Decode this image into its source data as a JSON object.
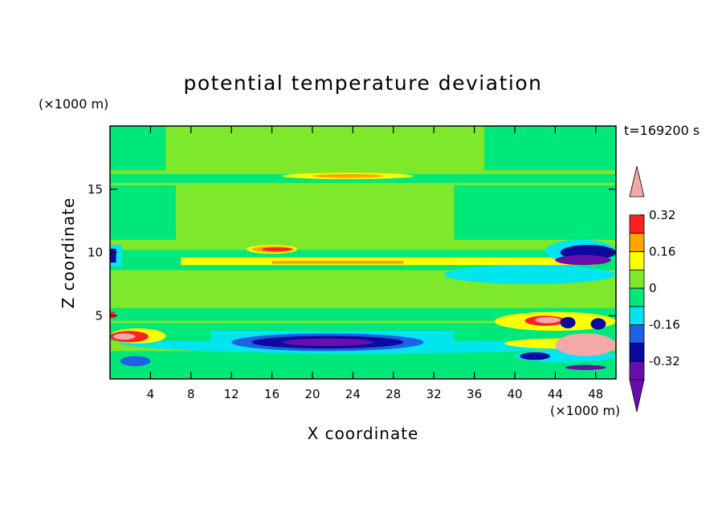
{
  "chart_data": {
    "type": "heatmap",
    "title": "potential temperature deviation",
    "xlabel": "X coordinate",
    "ylabel": "Z coordinate",
    "x_unit": "(×1000 m)",
    "y_unit": "(×1000 m)",
    "time_label": "t=169200 s",
    "xlim": [
      0,
      50
    ],
    "ylim": [
      0,
      20
    ],
    "x_ticks": [
      4,
      8,
      12,
      16,
      20,
      24,
      28,
      32,
      36,
      40,
      44,
      48
    ],
    "y_ticks": [
      5,
      10,
      15
    ],
    "colorbar": {
      "levels": [
        -0.4,
        -0.32,
        -0.24,
        -0.16,
        -0.08,
        0,
        0.08,
        0.16,
        0.24,
        0.32,
        0.4
      ],
      "colors": [
        "#6a0dad",
        "#0a0a9e",
        "#1e60e6",
        "#00e5ee",
        "#00e87a",
        "#7ee82a",
        "#ffff00",
        "#ffa500",
        "#ff2020"
      ],
      "under_color": "#6a0dad",
      "over_color": "#f4a8a8",
      "tick_labels": [
        "0.32",
        "0.16",
        "0",
        "-0.16",
        "-0.32"
      ],
      "tick_values": [
        0.32,
        0.16,
        0,
        -0.16,
        -0.32
      ]
    },
    "regions": [
      {
        "level": 0.04,
        "x": [
          0,
          50
        ],
        "z": [
          0,
          20
        ],
        "shape": "rect"
      },
      {
        "level": -0.04,
        "x": [
          0,
          50
        ],
        "z": [
          8.6,
          10.2
        ],
        "shape": "rect"
      },
      {
        "level": -0.04,
        "x": [
          0,
          50
        ],
        "z": [
          4.6,
          5.6
        ],
        "shape": "rect"
      },
      {
        "level": -0.04,
        "x": [
          0,
          50
        ],
        "z": [
          15.5,
          16.2
        ],
        "shape": "rect"
      },
      {
        "level": -0.04,
        "x": [
          0,
          5.5
        ],
        "z": [
          16.5,
          20
        ],
        "shape": "rect"
      },
      {
        "level": -0.04,
        "x": [
          37,
          50
        ],
        "z": [
          16.5,
          20
        ],
        "shape": "rect"
      },
      {
        "level": -0.04,
        "x": [
          0,
          6.5
        ],
        "z": [
          11,
          15.3
        ],
        "shape": "rect"
      },
      {
        "level": -0.04,
        "x": [
          34,
          50
        ],
        "z": [
          11,
          15.3
        ],
        "shape": "rect"
      },
      {
        "level": -0.04,
        "x": [
          0,
          50
        ],
        "z": [
          0,
          2.2
        ],
        "shape": "rect"
      },
      {
        "level": -0.12,
        "x": [
          1,
          49
        ],
        "z": [
          3.7,
          2.0
        ],
        "shape": "ellipse"
      },
      {
        "level": -0.04,
        "x": [
          0,
          50
        ],
        "z": [
          3.0,
          4.4
        ],
        "shape": "rect"
      },
      {
        "level": -0.12,
        "x": [
          10,
          34
        ],
        "z": [
          2.2,
          3.8
        ],
        "shape": "rect"
      },
      {
        "level": -0.2,
        "x": [
          12,
          31
        ],
        "z": [
          2.2,
          3.6
        ],
        "shape": "ellipse"
      },
      {
        "level": -0.28,
        "x": [
          14,
          29
        ],
        "z": [
          2.4,
          3.4
        ],
        "shape": "ellipse"
      },
      {
        "level": -0.36,
        "x": [
          17,
          26
        ],
        "z": [
          2.6,
          3.2
        ],
        "shape": "ellipse"
      },
      {
        "level": 0.12,
        "x": [
          7,
          48
        ],
        "z": [
          9.0,
          9.6
        ],
        "shape": "rect"
      },
      {
        "level": 0.2,
        "x": [
          16,
          29
        ],
        "z": [
          9.1,
          9.35
        ],
        "shape": "rect"
      },
      {
        "level": 0.12,
        "x": [
          17,
          30
        ],
        "z": [
          15.8,
          16.3
        ],
        "shape": "ellipse"
      },
      {
        "level": 0.2,
        "x": [
          20,
          27
        ],
        "z": [
          15.9,
          16.2
        ],
        "shape": "ellipse"
      },
      {
        "level": 0.12,
        "x": [
          13.5,
          18.5
        ],
        "z": [
          9.9,
          10.6
        ],
        "shape": "ellipse"
      },
      {
        "level": 0.2,
        "x": [
          14,
          18.2
        ],
        "z": [
          10.0,
          10.5
        ],
        "shape": "ellipse"
      },
      {
        "level": 0.28,
        "x": [
          15,
          18
        ],
        "z": [
          10.1,
          10.4
        ],
        "shape": "ellipse"
      },
      {
        "level": -0.12,
        "x": [
          0,
          1.2
        ],
        "z": [
          8.9,
          10.6
        ],
        "shape": "rect"
      },
      {
        "level": -0.28,
        "x": [
          0,
          0.6
        ],
        "z": [
          9.2,
          10.3
        ],
        "shape": "rect"
      },
      {
        "level": 0.12,
        "x": [
          0,
          5.5
        ],
        "z": [
          2.8,
          4.0
        ],
        "shape": "ellipse"
      },
      {
        "level": 0.28,
        "x": [
          0,
          3.8
        ],
        "z": [
          2.9,
          3.8
        ],
        "shape": "ellipse"
      },
      {
        "level": 0.4,
        "x": [
          0.3,
          2.5
        ],
        "z": [
          3.1,
          3.6
        ],
        "shape": "ellipse"
      },
      {
        "level": 0.28,
        "x": [
          0,
          0.5
        ],
        "z": [
          4.8,
          5.3
        ],
        "shape": "rect"
      },
      {
        "level": -0.2,
        "x": [
          1,
          4
        ],
        "z": [
          1.0,
          1.8
        ],
        "shape": "ellipse"
      },
      {
        "level": 0.12,
        "x": [
          38,
          50
        ],
        "z": [
          3.8,
          5.3
        ],
        "shape": "ellipse"
      },
      {
        "level": 0.28,
        "x": [
          41,
          45
        ],
        "z": [
          4.2,
          5.0
        ],
        "shape": "ellipse"
      },
      {
        "level": 0.4,
        "x": [
          42,
          44.5
        ],
        "z": [
          4.4,
          4.9
        ],
        "shape": "ellipse"
      },
      {
        "level": 0.12,
        "x": [
          39,
          50
        ],
        "z": [
          2.4,
          3.2
        ],
        "shape": "ellipse"
      },
      {
        "level": -0.12,
        "x": [
          40,
          50
        ],
        "z": [
          1.3,
          2.3
        ],
        "shape": "ellipse"
      },
      {
        "level": -0.28,
        "x": [
          40.5,
          43.5
        ],
        "z": [
          1.5,
          2.1
        ],
        "shape": "ellipse"
      },
      {
        "level": 0.4,
        "x": [
          44,
          50
        ],
        "z": [
          1.8,
          3.6
        ],
        "shape": "ellipse"
      },
      {
        "level": -0.36,
        "x": [
          45,
          49
        ],
        "z": [
          0.7,
          1.1
        ],
        "shape": "ellipse"
      },
      {
        "level": -0.28,
        "x": [
          44.5,
          46
        ],
        "z": [
          4.0,
          4.9
        ],
        "shape": "ellipse"
      },
      {
        "level": -0.28,
        "x": [
          47.5,
          49
        ],
        "z": [
          3.9,
          4.8
        ],
        "shape": "ellipse"
      },
      {
        "level": -0.12,
        "x": [
          33,
          50
        ],
        "z": [
          7.5,
          9.0
        ],
        "shape": "ellipse"
      },
      {
        "level": -0.12,
        "x": [
          43,
          50
        ],
        "z": [
          9.2,
          11.0
        ],
        "shape": "ellipse"
      },
      {
        "level": -0.28,
        "x": [
          44.5,
          50
        ],
        "z": [
          9.4,
          10.6
        ],
        "shape": "ellipse"
      },
      {
        "level": -0.36,
        "x": [
          44,
          49.5
        ],
        "z": [
          9.0,
          9.8
        ],
        "shape": "ellipse"
      }
    ]
  }
}
